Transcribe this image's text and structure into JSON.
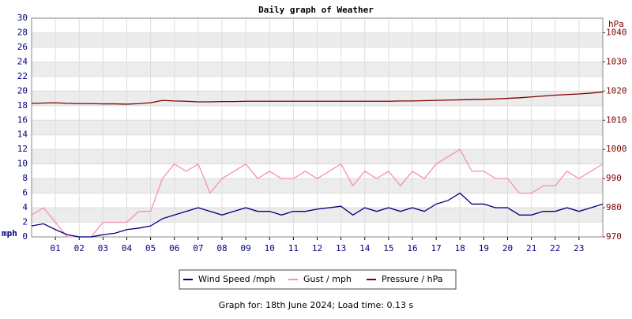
{
  "chart_data": {
    "type": "line",
    "title": "Daily graph of Weather",
    "ylabel": "mph",
    "y2label": "hPa",
    "footer": "Graph for: 18th June 2024; Load time: 0.13 s",
    "x": [
      0,
      0.5,
      1,
      1.5,
      2,
      2.5,
      3,
      3.5,
      4,
      4.5,
      5,
      5.5,
      6,
      6.5,
      7,
      7.5,
      8,
      8.5,
      9,
      9.5,
      10,
      10.5,
      11,
      11.5,
      12,
      12.5,
      13,
      13.5,
      14,
      14.5,
      15,
      15.5,
      16,
      16.5,
      17,
      17.5,
      18,
      18.5,
      19,
      19.5,
      20,
      20.5,
      21,
      21.5,
      22,
      22.5,
      23,
      23.5,
      24
    ],
    "xlim": [
      0,
      24
    ],
    "xticks": [
      {
        "value": 1,
        "label": "01"
      },
      {
        "value": 2,
        "label": "02"
      },
      {
        "value": 3,
        "label": "03"
      },
      {
        "value": 4,
        "label": "04"
      },
      {
        "value": 5,
        "label": "05"
      },
      {
        "value": 6,
        "label": "06"
      },
      {
        "value": 7,
        "label": "07"
      },
      {
        "value": 8,
        "label": "08"
      },
      {
        "value": 9,
        "label": "09"
      },
      {
        "value": 10,
        "label": "10"
      },
      {
        "value": 11,
        "label": "11"
      },
      {
        "value": 12,
        "label": "12"
      },
      {
        "value": 13,
        "label": "13"
      },
      {
        "value": 14,
        "label": "14"
      },
      {
        "value": 15,
        "label": "15"
      },
      {
        "value": 16,
        "label": "16"
      },
      {
        "value": 17,
        "label": "17"
      },
      {
        "value": 18,
        "label": "18"
      },
      {
        "value": 19,
        "label": "19"
      },
      {
        "value": 20,
        "label": "20"
      },
      {
        "value": 21,
        "label": "21"
      },
      {
        "value": 22,
        "label": "22"
      },
      {
        "value": 23,
        "label": "23"
      }
    ],
    "ylim": [
      0,
      30
    ],
    "yticks": [
      0,
      2,
      4,
      6,
      8,
      10,
      12,
      14,
      16,
      18,
      20,
      22,
      24,
      26,
      28,
      30
    ],
    "y2lim": [
      970,
      1045
    ],
    "y2ticks": [
      970,
      980,
      990,
      1000,
      1010,
      1020,
      1030,
      1040
    ],
    "grid": true,
    "series": [
      {
        "name": "Gust / mph",
        "color": "#f78fb3",
        "values": [
          3,
          4,
          2,
          0,
          0,
          0,
          2,
          2,
          2,
          3.5,
          3.5,
          8,
          10,
          9,
          10,
          6,
          8,
          9,
          10,
          8,
          9,
          8,
          8,
          9,
          8,
          9,
          10,
          7,
          9,
          8,
          9,
          7,
          9,
          8,
          10,
          11,
          12,
          9,
          9,
          8,
          8,
          6,
          6,
          7,
          7,
          9,
          8,
          9,
          10
        ]
      },
      {
        "name": "Wind Speed /mph",
        "color": "#000080",
        "values": [
          1.5,
          1.8,
          1,
          0.3,
          0,
          0,
          0.3,
          0.5,
          1,
          1.2,
          1.5,
          2.5,
          3,
          3.5,
          4,
          3.5,
          3,
          3.5,
          4,
          3.5,
          3.5,
          3,
          3.5,
          3.5,
          3.8,
          4,
          4.2,
          3,
          4,
          3.5,
          4,
          3.5,
          4,
          3.5,
          4.5,
          5,
          6,
          4.5,
          4.5,
          4,
          4,
          3,
          3,
          3.5,
          3.5,
          4,
          3.5,
          4,
          4.5
        ]
      },
      {
        "name": "Pressure / hPa",
        "color": "#800000",
        "axis": "y2",
        "values": [
          1015.8,
          1015.9,
          1016,
          1015.8,
          1015.7,
          1015.7,
          1015.6,
          1015.6,
          1015.5,
          1015.7,
          1016,
          1016.8,
          1016.6,
          1016.5,
          1016.3,
          1016.3,
          1016.4,
          1016.4,
          1016.5,
          1016.5,
          1016.5,
          1016.5,
          1016.5,
          1016.5,
          1016.5,
          1016.5,
          1016.5,
          1016.5,
          1016.5,
          1016.5,
          1016.5,
          1016.6,
          1016.6,
          1016.7,
          1016.8,
          1016.9,
          1017,
          1017.1,
          1017.2,
          1017.3,
          1017.5,
          1017.7,
          1018,
          1018.3,
          1018.6,
          1018.8,
          1019,
          1019.3,
          1019.7
        ]
      }
    ],
    "legend_order": [
      1,
      0,
      2
    ]
  }
}
